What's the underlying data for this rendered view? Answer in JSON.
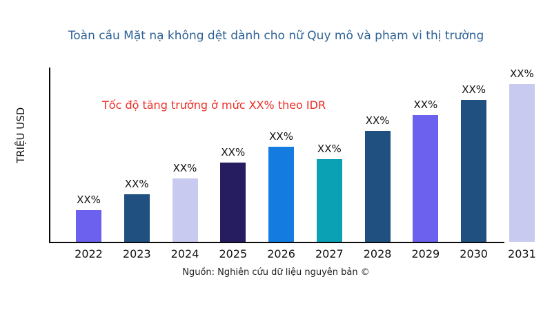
{
  "title": "Toàn cầu Mặt nạ không dệt dành cho nữ Quy mô và phạm vi thị trường",
  "title_color": "#2E6295",
  "y_axis_label": "TRIỆU USD",
  "annotation": {
    "text": "Tốc độ tăng trưởng ở mức XX% theo IDR",
    "color": "#EE2C24"
  },
  "footer": "Nguồn: Nghiên cứu dữ liệu nguyên bản ©",
  "chart_data": {
    "type": "bar",
    "title": "Toàn cầu Mặt nạ không dệt dành cho nữ Quy mô và phạm vi thị trường",
    "xlabel": "",
    "ylabel": "TRIỆU USD",
    "categories": [
      "2022",
      "2023",
      "2024",
      "2025",
      "2026",
      "2027",
      "2028",
      "2029",
      "2030",
      "2031"
    ],
    "values": [
      46,
      69,
      92,
      115,
      138,
      120,
      161,
      184,
      206,
      229
    ],
    "values_note": "relative bar heights (actual values masked as XX% in source image)",
    "bar_labels": [
      "XX%",
      "XX%",
      "XX%",
      "XX%",
      "XX%",
      "XX%",
      "XX%",
      "XX%",
      "XX%",
      "XX%"
    ],
    "bar_colors": [
      "#6C60EE",
      "#1F5080",
      "#C8CBEF",
      "#261D61",
      "#147CE0",
      "#0AA1B5",
      "#1F5080",
      "#6C60EE",
      "#1F5080",
      "#C8CBEF"
    ],
    "ylim": [
      0,
      253
    ],
    "grid": false,
    "legend": false,
    "annotation": "Tốc độ tăng trưởng ở mức XX% theo IDR"
  }
}
